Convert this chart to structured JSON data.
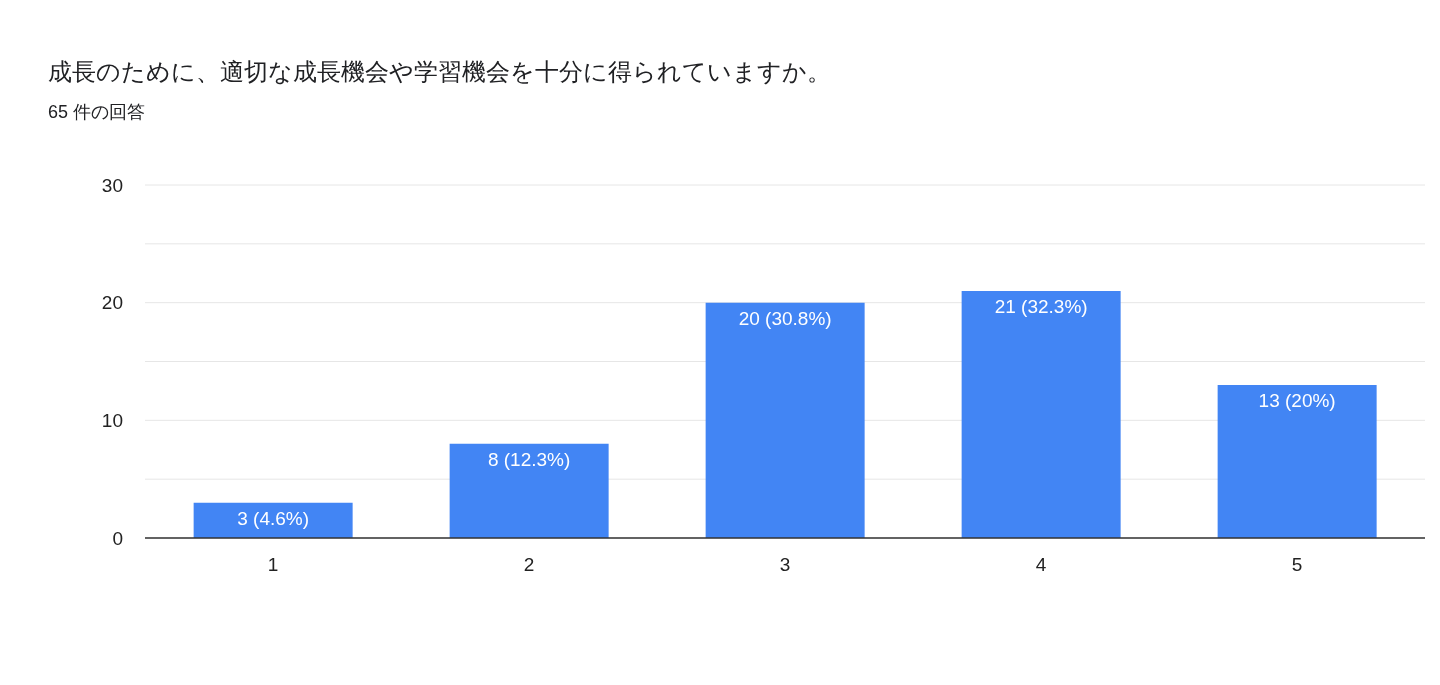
{
  "chart_data": {
    "type": "bar",
    "title": "成長のために、適切な成長機会や学習機会を十分に得られていますか。",
    "subtitle": "65 件の回答",
    "categories": [
      "1",
      "2",
      "3",
      "4",
      "5"
    ],
    "values": [
      3,
      8,
      20,
      21,
      13
    ],
    "value_labels": [
      "3 (4.6%)",
      "8 (12.3%)",
      "20 (30.8%)",
      "21 (32.3%)",
      "13 (20%)"
    ],
    "color": "#4285f4",
    "ylim": [
      0,
      30
    ],
    "yticks": [
      0,
      {
        "value": 5,
        "label": null
      },
      10,
      {
        "value": 15,
        "label": null
      },
      20,
      {
        "value": 25,
        "label": null
      },
      30
    ],
    "grid": "y"
  }
}
